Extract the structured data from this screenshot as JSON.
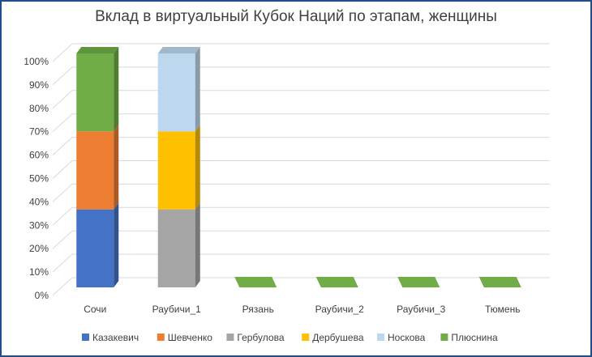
{
  "chart_data": {
    "type": "bar",
    "stacked": "percent",
    "three_d": true,
    "title": "Вклад в виртуальный Кубок Наций по этапам, женщины",
    "y_ticks": [
      "0%",
      "10%",
      "20%",
      "30%",
      "40%",
      "50%",
      "60%",
      "70%",
      "80%",
      "90%",
      "100%"
    ],
    "ylim": [
      0,
      100
    ],
    "categories": [
      "Сочи",
      "Раубичи_1",
      "Рязань",
      "Раубичи_2",
      "Раубичи_3",
      "Тюмень"
    ],
    "series": [
      {
        "name": "Казакевич",
        "color": "#4472c4",
        "values": [
          33.3,
          0,
          0,
          0,
          0,
          0
        ]
      },
      {
        "name": "Шевченко",
        "color": "#ed7d31",
        "values": [
          33.3,
          0,
          0,
          0,
          0,
          0
        ]
      },
      {
        "name": "Гербулова",
        "color": "#a5a5a5",
        "values": [
          0,
          33.3,
          0,
          0,
          0,
          0
        ]
      },
      {
        "name": "Дербушева",
        "color": "#ffc000",
        "values": [
          0,
          33.3,
          0,
          0,
          0,
          0
        ]
      },
      {
        "name": "Носкова",
        "color": "#bdd7ee",
        "values": [
          0,
          33.3,
          0,
          0,
          0,
          0
        ]
      },
      {
        "name": "Плюснина",
        "color": "#70ad47",
        "values": [
          33.3,
          0,
          0,
          0,
          0,
          0
        ]
      }
    ],
    "legend_position": "bottom",
    "grid": true
  }
}
